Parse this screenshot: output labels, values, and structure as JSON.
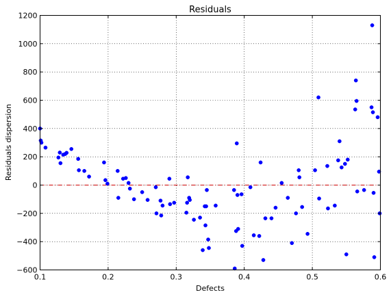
{
  "chart_data": {
    "type": "scatter",
    "title": "Residuals",
    "xlabel": "Defects",
    "ylabel": "Residuals dispersion",
    "xlim": [
      0.1,
      0.6
    ],
    "ylim": [
      -600,
      1200
    ],
    "xticks": [
      0.1,
      0.2,
      0.3,
      0.4,
      0.5,
      0.6
    ],
    "xtick_labels": [
      "0.1",
      "0.2",
      "0.3",
      "0.4",
      "0.5",
      "0.6"
    ],
    "yticks": [
      -600,
      -400,
      -200,
      0,
      200,
      400,
      600,
      800,
      1000,
      1200
    ],
    "ytick_labels": [
      "−600",
      "−400",
      "−200",
      "0",
      "200",
      "400",
      "600",
      "800",
      "1000",
      "1200"
    ],
    "grid": true,
    "reference_line": {
      "y": 0,
      "style": "dash-dot",
      "color": "#cc0000"
    },
    "marker_color": "#0000ff",
    "points": [
      [
        0.1,
        400
      ],
      [
        0.101,
        315
      ],
      [
        0.102,
        300
      ],
      [
        0.108,
        265
      ],
      [
        0.127,
        195
      ],
      [
        0.129,
        230
      ],
      [
        0.13,
        155
      ],
      [
        0.134,
        215
      ],
      [
        0.137,
        220
      ],
      [
        0.139,
        228
      ],
      [
        0.146,
        255
      ],
      [
        0.156,
        185
      ],
      [
        0.157,
        105
      ],
      [
        0.165,
        100
      ],
      [
        0.172,
        60
      ],
      [
        0.194,
        160
      ],
      [
        0.196,
        35
      ],
      [
        0.199,
        10
      ],
      [
        0.214,
        100
      ],
      [
        0.215,
        -90
      ],
      [
        0.222,
        45
      ],
      [
        0.226,
        50
      ],
      [
        0.23,
        15
      ],
      [
        0.232,
        -25
      ],
      [
        0.238,
        -100
      ],
      [
        0.25,
        -50
      ],
      [
        0.258,
        -105
      ],
      [
        0.27,
        -15
      ],
      [
        0.271,
        -200
      ],
      [
        0.277,
        -110
      ],
      [
        0.278,
        -215
      ],
      [
        0.28,
        -145
      ],
      [
        0.29,
        45
      ],
      [
        0.291,
        -135
      ],
      [
        0.297,
        -125
      ],
      [
        0.315,
        -195
      ],
      [
        0.316,
        -125
      ],
      [
        0.317,
        55
      ],
      [
        0.319,
        -90
      ],
      [
        0.32,
        -105
      ],
      [
        0.326,
        -245
      ],
      [
        0.335,
        -230
      ],
      [
        0.339,
        -460
      ],
      [
        0.342,
        -150
      ],
      [
        0.343,
        -285
      ],
      [
        0.344,
        -150
      ],
      [
        0.345,
        -35
      ],
      [
        0.347,
        -385
      ],
      [
        0.348,
        -445
      ],
      [
        0.358,
        -145
      ],
      [
        0.385,
        -35
      ],
      [
        0.386,
        -590
      ],
      [
        0.388,
        -325
      ],
      [
        0.389,
        295
      ],
      [
        0.39,
        -70
      ],
      [
        0.391,
        -310
      ],
      [
        0.396,
        -65
      ],
      [
        0.397,
        -430
      ],
      [
        0.409,
        -15
      ],
      [
        0.414,
        -355
      ],
      [
        0.422,
        -360
      ],
      [
        0.424,
        160
      ],
      [
        0.428,
        -530
      ],
      [
        0.431,
        -235
      ],
      [
        0.44,
        -235
      ],
      [
        0.446,
        -160
      ],
      [
        0.455,
        15
      ],
      [
        0.464,
        -90
      ],
      [
        0.47,
        -410
      ],
      [
        0.476,
        -200
      ],
      [
        0.48,
        105
      ],
      [
        0.481,
        55
      ],
      [
        0.485,
        -155
      ],
      [
        0.493,
        -345
      ],
      [
        0.504,
        105
      ],
      [
        0.509,
        620
      ],
      [
        0.51,
        -95
      ],
      [
        0.522,
        135
      ],
      [
        0.523,
        -165
      ],
      [
        0.533,
        -145
      ],
      [
        0.538,
        175
      ],
      [
        0.54,
        310
      ],
      [
        0.543,
        125
      ],
      [
        0.548,
        150
      ],
      [
        0.55,
        -490
      ],
      [
        0.552,
        180
      ],
      [
        0.563,
        535
      ],
      [
        0.564,
        740
      ],
      [
        0.565,
        595
      ],
      [
        0.566,
        -45
      ],
      [
        0.576,
        -35
      ],
      [
        0.587,
        550
      ],
      [
        0.588,
        1130
      ],
      [
        0.589,
        515
      ],
      [
        0.59,
        -55
      ],
      [
        0.591,
        -510
      ],
      [
        0.596,
        480
      ],
      [
        0.598,
        95
      ],
      [
        0.599,
        -200
      ]
    ]
  }
}
